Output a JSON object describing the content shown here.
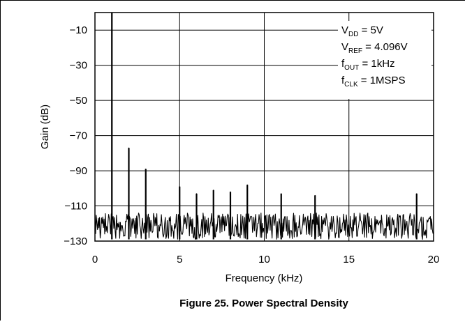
{
  "chart_data": {
    "type": "line",
    "caption": "Figure 25. Power Spectral Density",
    "xlabel": "Frequency (kHz)",
    "ylabel": "Gain (dB)",
    "xlim": [
      0,
      20
    ],
    "ylim": [
      -130,
      0
    ],
    "x_ticks": [
      0,
      5,
      10,
      15,
      20
    ],
    "y_ticks": [
      -10,
      -30,
      -50,
      -70,
      -90,
      -110,
      -130
    ],
    "x_tick_labels": [
      "0",
      "5",
      "10",
      "15",
      "20"
    ],
    "y_tick_labels": [
      "−10",
      "−30",
      "−50",
      "−70",
      "−90",
      "−110",
      "−130"
    ],
    "grid": true,
    "annotations": [
      {
        "main": "V",
        "sub": "DD",
        "rest": " = 5V"
      },
      {
        "main": "V",
        "sub": "REF",
        "rest": " = 4.096V"
      },
      {
        "main": "f",
        "sub": "OUT",
        "rest": " = 1kHz"
      },
      {
        "main": "f",
        "sub": "CLK",
        "rest": " = 1MSPS"
      }
    ],
    "annotation_position": "top-right",
    "noise_floor_db": [
      -129,
      -114
    ],
    "peaks": [
      {
        "x": 1,
        "y": 0
      },
      {
        "x": 2,
        "y": -77
      },
      {
        "x": 3,
        "y": -89
      },
      {
        "x": 5,
        "y": -99
      },
      {
        "x": 6,
        "y": -103
      },
      {
        "x": 7,
        "y": -101
      },
      {
        "x": 8,
        "y": -102
      },
      {
        "x": 9,
        "y": -98
      },
      {
        "x": 11,
        "y": -103
      },
      {
        "x": 13,
        "y": -104
      },
      {
        "x": 19,
        "y": -103
      }
    ],
    "color": "#000000"
  }
}
